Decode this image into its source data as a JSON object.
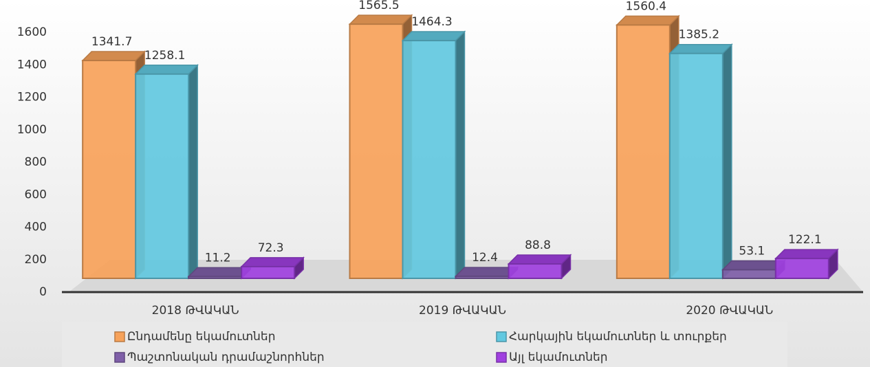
{
  "chart_data": {
    "type": "bar",
    "categories": [
      "2018 ԹՎԱԿԱՆ",
      "2019 ԹՎԱԿԱՆ",
      "2020 ԹՎԱԿԱՆ"
    ],
    "series": [
      {
        "name": "Ընդամենը եկամուտներ",
        "color": "#f7a25a",
        "values": [
          1341.7,
          1565.5,
          1560.4
        ]
      },
      {
        "name": "Հարկային եկամուտներ և տուրքեր",
        "color": "#62c8e0",
        "values": [
          1258.1,
          1464.3,
          1385.2
        ]
      },
      {
        "name": "Պաշտոնական դրամաշնորհներ",
        "color": "#7f5fa8",
        "values": [
          11.2,
          12.4,
          53.1
        ]
      },
      {
        "name": "Այլ եկամուտներ",
        "color": "#a040e0",
        "values": [
          72.3,
          88.8,
          122.1
        ]
      }
    ],
    "ylim": [
      0,
      1600
    ],
    "yticks": [
      0,
      200,
      400,
      600,
      800,
      1000,
      1200,
      1400,
      1600
    ],
    "legend": "bottom"
  }
}
